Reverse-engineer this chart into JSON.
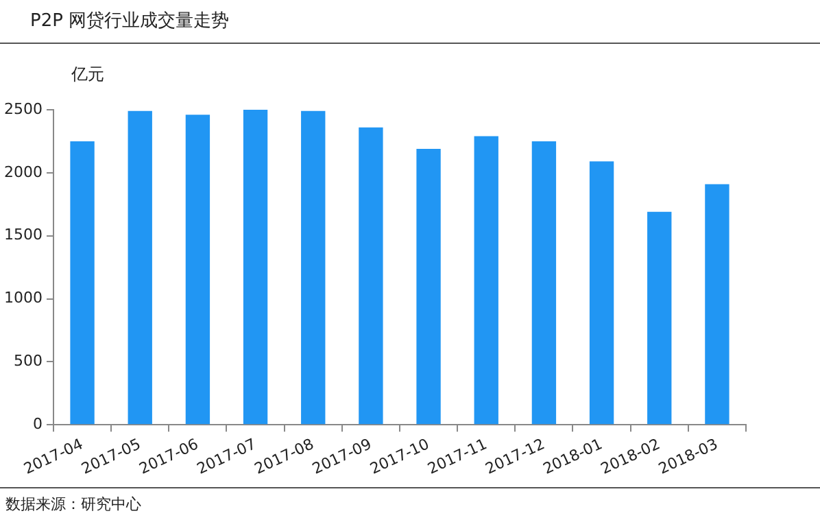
{
  "chart_data": {
    "type": "bar",
    "title": "P2P 网贷行业成交量走势",
    "ylabel": "亿元",
    "categories": [
      "2017-04",
      "2017-05",
      "2017-06",
      "2017-07",
      "2017-08",
      "2017-09",
      "2017-10",
      "2017-11",
      "2017-12",
      "2018-01",
      "2018-02",
      "2018-03"
    ],
    "values": [
      2250,
      2490,
      2460,
      2500,
      2490,
      2360,
      2190,
      2290,
      2250,
      2090,
      1690,
      1910
    ],
    "color": "#2196f3",
    "ylim": [
      0,
      2500
    ],
    "yticks": [
      0,
      500,
      1000,
      1500,
      2000,
      2500
    ],
    "grid": false,
    "legend": false,
    "annotations": [
      "数据来源：研究中心"
    ]
  }
}
